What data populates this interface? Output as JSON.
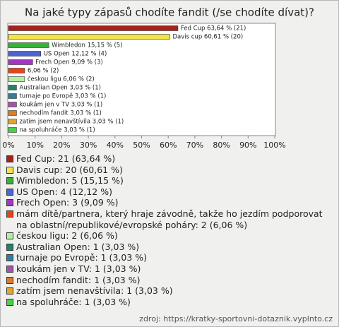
{
  "chart_data": {
    "type": "bar",
    "orientation": "horizontal",
    "title": "Na jaké typy zápasů chodíte fandit (/se chodíte dívat)?",
    "values": [
      63.64,
      60.61,
      15.15,
      12.12,
      9.09,
      6.06,
      6.06,
      3.03,
      3.03,
      3.03,
      3.03,
      3.03,
      3.03
    ],
    "value_labels": [
      "Fed Cup 63,64 % (21)",
      "Davis cup 60,61 % (20)",
      "Wimbledon 15,15 % (5)",
      "US Open 12,12 % (4)",
      "Frech Open 9,09 % (3)",
      "6,06 % (2)",
      "českou ligu 6,06 % (2)",
      "Australian Open 3,03 % (1)",
      "turnaje po Evropě 3,03 % (1)",
      "koukám jen v TV 3,03 % (1)",
      "nechodím fandit 3,03 % (1)",
      "zatím jsem nenavštívila 3,03 % (1)",
      "na spoluhráče 3,03 % (1)"
    ],
    "legend_labels": [
      "Fed Cup: 21 (63,64 %)",
      "Davis cup: 20 (60,61 %)",
      "Wimbledon: 5 (15,15 %)",
      "US Open: 4 (12,12 %)",
      "Frech Open: 3 (9,09 %)",
      "mám dítě/partnera, který hraje závodně, takže ho jezdím podporovat na oblastní/republikové/evropské poháry: 2 (6,06 %)",
      "českou ligu: 2 (6,06 %)",
      "Australian Open: 1 (3,03 %)",
      "turnaje po Evropě: 1 (3,03 %)",
      "koukám jen v TV: 1 (3,03 %)",
      "nechodím fandit: 1 (3,03 %)",
      "zatím jsem nenavštívila: 1 (3,03 %)",
      "na spoluhráče: 1 (3,03 %)"
    ],
    "colors": [
      "#a8221b",
      "#f2e44a",
      "#35b535",
      "#4a66d4",
      "#a436c4",
      "#e2461a",
      "#b4eea4",
      "#23806a",
      "#2f7f9f",
      "#a056a8",
      "#e27a24",
      "#e0a82a",
      "#44d444"
    ],
    "xlim": [
      0,
      100
    ],
    "xticks": [
      {
        "value": 0,
        "label": "0%"
      },
      {
        "value": 10,
        "label": "10%"
      },
      {
        "value": 20,
        "label": "20%"
      },
      {
        "value": 30,
        "label": "30%"
      },
      {
        "value": 40,
        "label": "40%"
      },
      {
        "value": 50,
        "label": "50%"
      },
      {
        "value": 60,
        "label": "60%"
      },
      {
        "value": 70,
        "label": "70%"
      },
      {
        "value": 80,
        "label": "80%"
      },
      {
        "value": 90,
        "label": "90%"
      },
      {
        "value": 100,
        "label": "100%"
      }
    ],
    "grid": false,
    "source": "zdroj: https://kratky-sportovni-dotaznik.vyplnto.cz"
  }
}
